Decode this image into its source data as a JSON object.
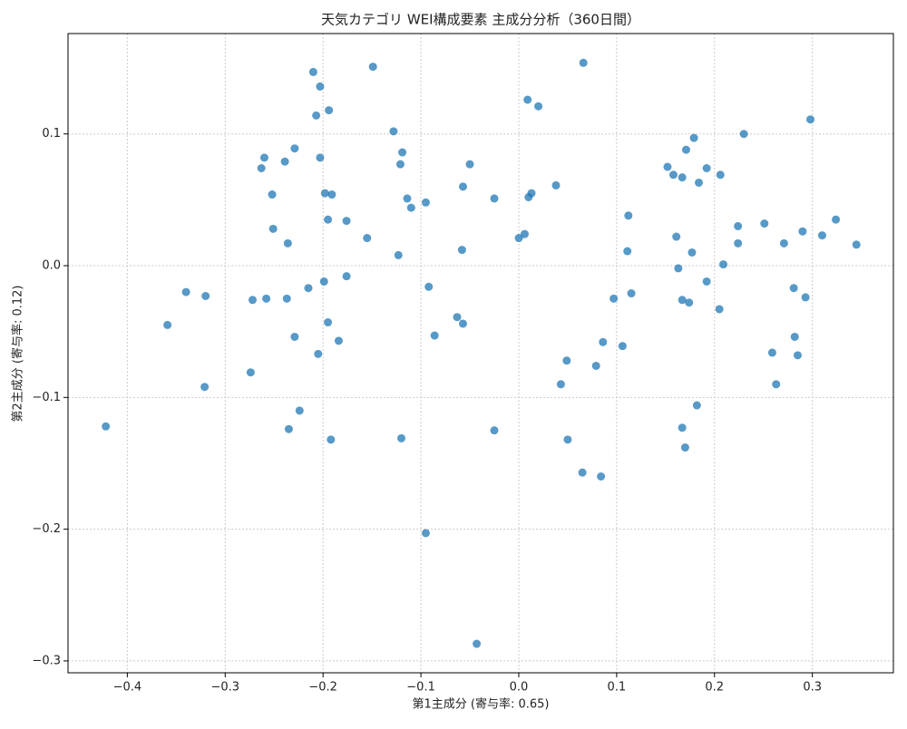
{
  "chart_data": {
    "type": "scatter",
    "title": "天気カテゴリ WEI構成要素 主成分分析（360日間）",
    "x_label": "第1主成分 (寄与率: 0.65)",
    "y_label": "第2主成分 (寄与率: 0.12)",
    "color": "#1f77b4",
    "grid": true,
    "xlim": [
      -0.4606,
      0.3828
    ],
    "ylim": [
      -0.309,
      0.1762
    ],
    "xticks": [
      {
        "value": -0.4,
        "label": "−0.4"
      },
      {
        "value": -0.3,
        "label": "−0.3"
      },
      {
        "value": -0.2,
        "label": "−0.2"
      },
      {
        "value": -0.1,
        "label": "−0.1"
      },
      {
        "value": 0,
        "label": "0.0"
      },
      0.1,
      0.2,
      0.3
    ],
    "yticks": [
      {
        "value": -0.3,
        "label": "−0.3"
      },
      {
        "value": -0.2,
        "label": "−0.2"
      },
      {
        "value": -0.1,
        "label": "−0.1"
      },
      {
        "value": 0,
        "label": "0.0"
      },
      0.1
    ],
    "x": [
      -0.422,
      -0.359,
      -0.34,
      -0.32,
      -0.321,
      -0.274,
      -0.272,
      -0.258,
      -0.237,
      -0.235,
      -0.229,
      -0.224,
      -0.215,
      -0.205,
      -0.199,
      -0.195,
      -0.184,
      -0.176,
      -0.192,
      -0.26,
      -0.263,
      -0.239,
      -0.229,
      -0.252,
      -0.251,
      -0.236,
      -0.21,
      -0.203,
      -0.207,
      -0.194,
      -0.203,
      -0.198,
      -0.191,
      -0.195,
      -0.176,
      -0.155,
      -0.149,
      -0.128,
      -0.119,
      -0.121,
      -0.114,
      -0.11,
      -0.095,
      -0.123,
      -0.092,
      -0.086,
      -0.063,
      -0.057,
      -0.12,
      -0.095,
      -0.043,
      -0.025,
      -0.057,
      -0.05,
      -0.058,
      -0.025,
      0.0,
      0.006,
      0.01,
      0.013,
      0.009,
      0.02,
      0.038,
      0.066,
      0.043,
      0.049,
      0.05,
      0.065,
      0.084,
      0.079,
      0.086,
      0.106,
      0.097,
      0.115,
      0.111,
      0.112,
      0.152,
      0.158,
      0.167,
      0.171,
      0.179,
      0.192,
      0.184,
      0.206,
      0.23,
      0.161,
      0.163,
      0.177,
      0.167,
      0.174,
      0.192,
      0.205,
      0.209,
      0.224,
      0.224,
      0.251,
      0.271,
      0.29,
      0.31,
      0.324,
      0.345,
      0.298,
      0.281,
      0.293,
      0.282,
      0.259,
      0.285,
      0.263,
      0.182,
      0.167,
      0.17
    ],
    "y": [
      -0.122,
      -0.045,
      -0.02,
      -0.023,
      -0.092,
      -0.081,
      -0.026,
      -0.025,
      -0.025,
      -0.124,
      -0.054,
      -0.11,
      -0.017,
      -0.067,
      -0.012,
      -0.043,
      -0.057,
      -0.008,
      -0.132,
      0.082,
      0.074,
      0.079,
      0.089,
      0.054,
      0.028,
      0.017,
      0.147,
      0.136,
      0.114,
      0.118,
      0.082,
      0.055,
      0.054,
      0.035,
      0.034,
      0.021,
      0.151,
      0.102,
      0.086,
      0.077,
      0.051,
      0.044,
      0.048,
      0.008,
      -0.016,
      -0.053,
      -0.039,
      -0.044,
      -0.131,
      -0.203,
      -0.287,
      -0.125,
      0.06,
      0.077,
      0.012,
      0.051,
      0.021,
      0.024,
      0.052,
      0.055,
      0.126,
      0.121,
      0.061,
      0.154,
      -0.09,
      -0.072,
      -0.132,
      -0.157,
      -0.16,
      -0.076,
      -0.058,
      -0.061,
      -0.025,
      -0.021,
      0.011,
      0.038,
      0.075,
      0.069,
      0.067,
      0.088,
      0.097,
      0.074,
      0.063,
      0.069,
      0.1,
      0.022,
      -0.002,
      0.01,
      -0.026,
      -0.028,
      -0.012,
      -0.033,
      0.001,
      0.03,
      0.017,
      0.032,
      0.017,
      0.026,
      0.023,
      0.035,
      0.016,
      0.111,
      -0.017,
      -0.024,
      -0.054,
      -0.066,
      -0.068,
      -0.09,
      -0.106,
      -0.123,
      -0.138
    ]
  }
}
